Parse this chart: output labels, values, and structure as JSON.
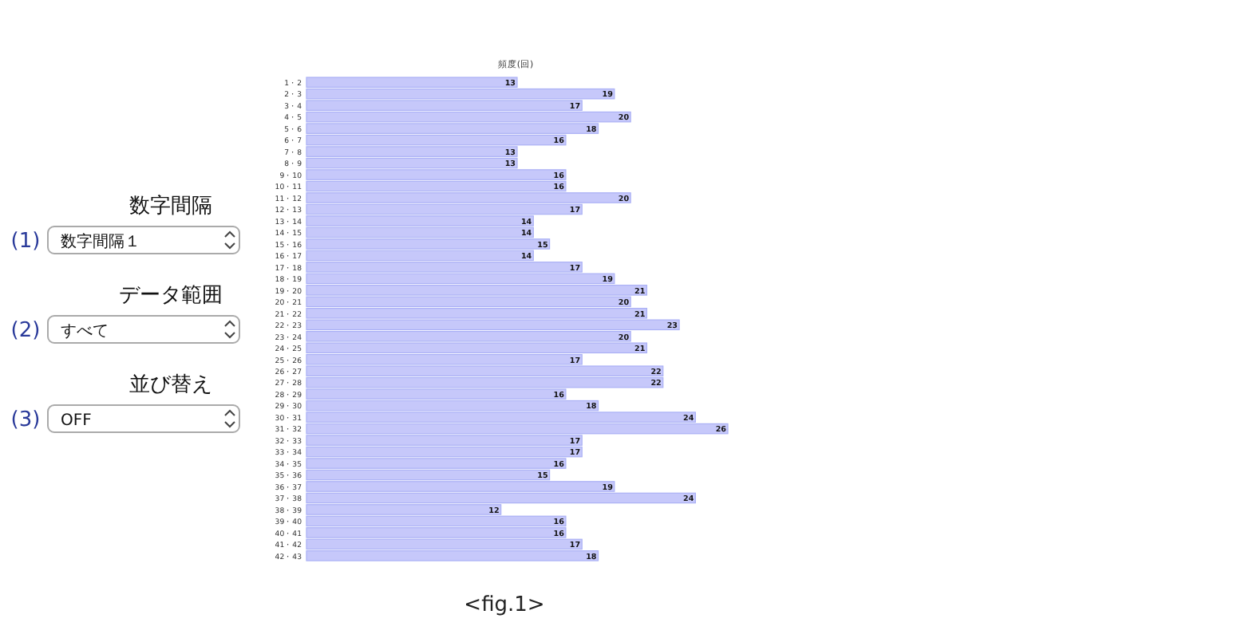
{
  "chart_data": [
    {
      "type": "other",
      "annotations": [
        "数字間隔",
        "(1)",
        "数字間隔１",
        "データ範囲",
        "(2)",
        "すべて",
        "並び替え",
        "(3)",
        "OFF"
      ]
    },
    {
      "type": "bar",
      "orientation": "horizontal",
      "title": "頻度(回)",
      "data_labels": true,
      "color": "#c6c8fa",
      "categories": [
        "1・2",
        "2・3",
        "3・4",
        "4・5",
        "5・6",
        "6・7",
        "7・8",
        "8・9",
        "9・10",
        "10・11",
        "11・12",
        "12・13",
        "13・14",
        "14・15",
        "15・16",
        "16・17",
        "17・18",
        "18・19",
        "19・20",
        "20・21",
        "21・22",
        "22・23",
        "23・24",
        "24・25",
        "25・26",
        "26・27",
        "27・28",
        "28・29",
        "29・30",
        "30・31",
        "31・32",
        "32・33",
        "33・34",
        "34・35",
        "35・36",
        "36・37",
        "37・38",
        "38・39",
        "39・40",
        "40・41",
        "41・42",
        "42・43"
      ],
      "values": [
        13,
        19,
        17,
        20,
        18,
        16,
        13,
        13,
        16,
        16,
        20,
        17,
        14,
        14,
        15,
        14,
        17,
        19,
        21,
        20,
        21,
        23,
        20,
        21,
        17,
        22,
        22,
        16,
        18,
        24,
        26,
        17,
        17,
        16,
        15,
        19,
        24,
        12,
        16,
        16,
        17,
        18
      ],
      "annotations": [
        "<fig.1>"
      ]
    }
  ]
}
